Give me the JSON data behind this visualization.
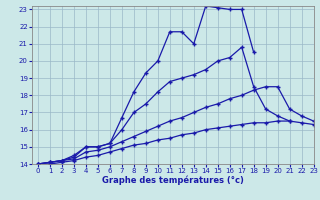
{
  "xlabel": "Graphe des températures (°c)",
  "xlim": [
    -0.5,
    23
  ],
  "ylim": [
    14,
    23.2
  ],
  "yticks": [
    14,
    15,
    16,
    17,
    18,
    19,
    20,
    21,
    22,
    23
  ],
  "xticks": [
    0,
    1,
    2,
    3,
    4,
    5,
    6,
    7,
    8,
    9,
    10,
    11,
    12,
    13,
    14,
    15,
    16,
    17,
    18,
    19,
    20,
    21,
    22,
    23
  ],
  "background_color": "#cce8e8",
  "grid_color": "#9ab8c8",
  "line_color": "#1a1aaa",
  "lines": [
    {
      "x": [
        0,
        1,
        2,
        3,
        4,
        5,
        6,
        7,
        8,
        9,
        10,
        11,
        12,
        13,
        14,
        15,
        16,
        17,
        18
      ],
      "y": [
        14.0,
        14.1,
        14.2,
        14.4,
        15.0,
        15.0,
        15.2,
        16.7,
        18.2,
        19.3,
        20.0,
        21.7,
        21.7,
        21.0,
        23.2,
        23.1,
        23.0,
        23.0,
        20.5
      ]
    },
    {
      "x": [
        0,
        1,
        2,
        3,
        4,
        5,
        6,
        7,
        8,
        9,
        10,
        11,
        12,
        13,
        14,
        15,
        16,
        17,
        18,
        19,
        20,
        21
      ],
      "y": [
        14.0,
        14.1,
        14.2,
        14.5,
        15.0,
        15.0,
        15.2,
        16.0,
        17.0,
        17.5,
        18.2,
        18.8,
        19.0,
        19.2,
        19.5,
        20.0,
        20.2,
        20.8,
        18.5,
        17.2,
        16.8,
        16.5
      ]
    },
    {
      "x": [
        0,
        1,
        2,
        3,
        4,
        5,
        6,
        7,
        8,
        9,
        10,
        11,
        12,
        13,
        14,
        15,
        16,
        17,
        18,
        19,
        20,
        21,
        22,
        23
      ],
      "y": [
        14.0,
        14.1,
        14.2,
        14.3,
        14.7,
        14.8,
        15.0,
        15.3,
        15.6,
        15.9,
        16.2,
        16.5,
        16.7,
        17.0,
        17.3,
        17.5,
        17.8,
        18.0,
        18.3,
        18.5,
        18.5,
        17.2,
        16.8,
        16.5
      ]
    },
    {
      "x": [
        0,
        1,
        2,
        3,
        4,
        5,
        6,
        7,
        8,
        9,
        10,
        11,
        12,
        13,
        14,
        15,
        16,
        17,
        18,
        19,
        20,
        21,
        22,
        23
      ],
      "y": [
        14.0,
        14.0,
        14.1,
        14.2,
        14.4,
        14.5,
        14.7,
        14.9,
        15.1,
        15.2,
        15.4,
        15.5,
        15.7,
        15.8,
        16.0,
        16.1,
        16.2,
        16.3,
        16.4,
        16.4,
        16.5,
        16.5,
        16.4,
        16.3
      ]
    }
  ]
}
